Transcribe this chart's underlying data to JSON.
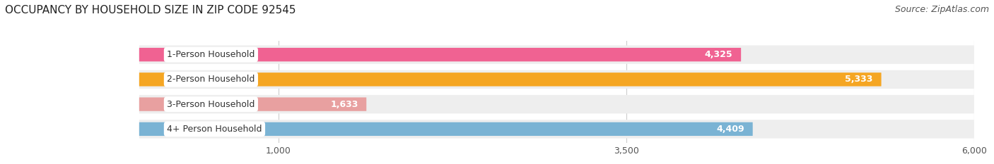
{
  "title": "OCCUPANCY BY HOUSEHOLD SIZE IN ZIP CODE 92545",
  "source": "Source: ZipAtlas.com",
  "categories": [
    "1-Person Household",
    "2-Person Household",
    "3-Person Household",
    "4+ Person Household"
  ],
  "values": [
    4325,
    5333,
    1633,
    4409
  ],
  "bar_colors": [
    "#f06292",
    "#f5a623",
    "#e8a0a0",
    "#7ab3d4"
  ],
  "background_color": "#ffffff",
  "row_bg_color": "#eeeeee",
  "xlim": [
    0,
    6000
  ],
  "xticks": [
    1000,
    3500,
    6000
  ],
  "xtick_labels": [
    "1,000",
    "3,500",
    "6,000"
  ],
  "title_fontsize": 11,
  "source_fontsize": 9,
  "bar_label_fontsize": 9,
  "category_fontsize": 9,
  "value_label_color_inside": "#ffffff",
  "value_label_color_outside": "#555555",
  "grid_color": "#cccccc"
}
